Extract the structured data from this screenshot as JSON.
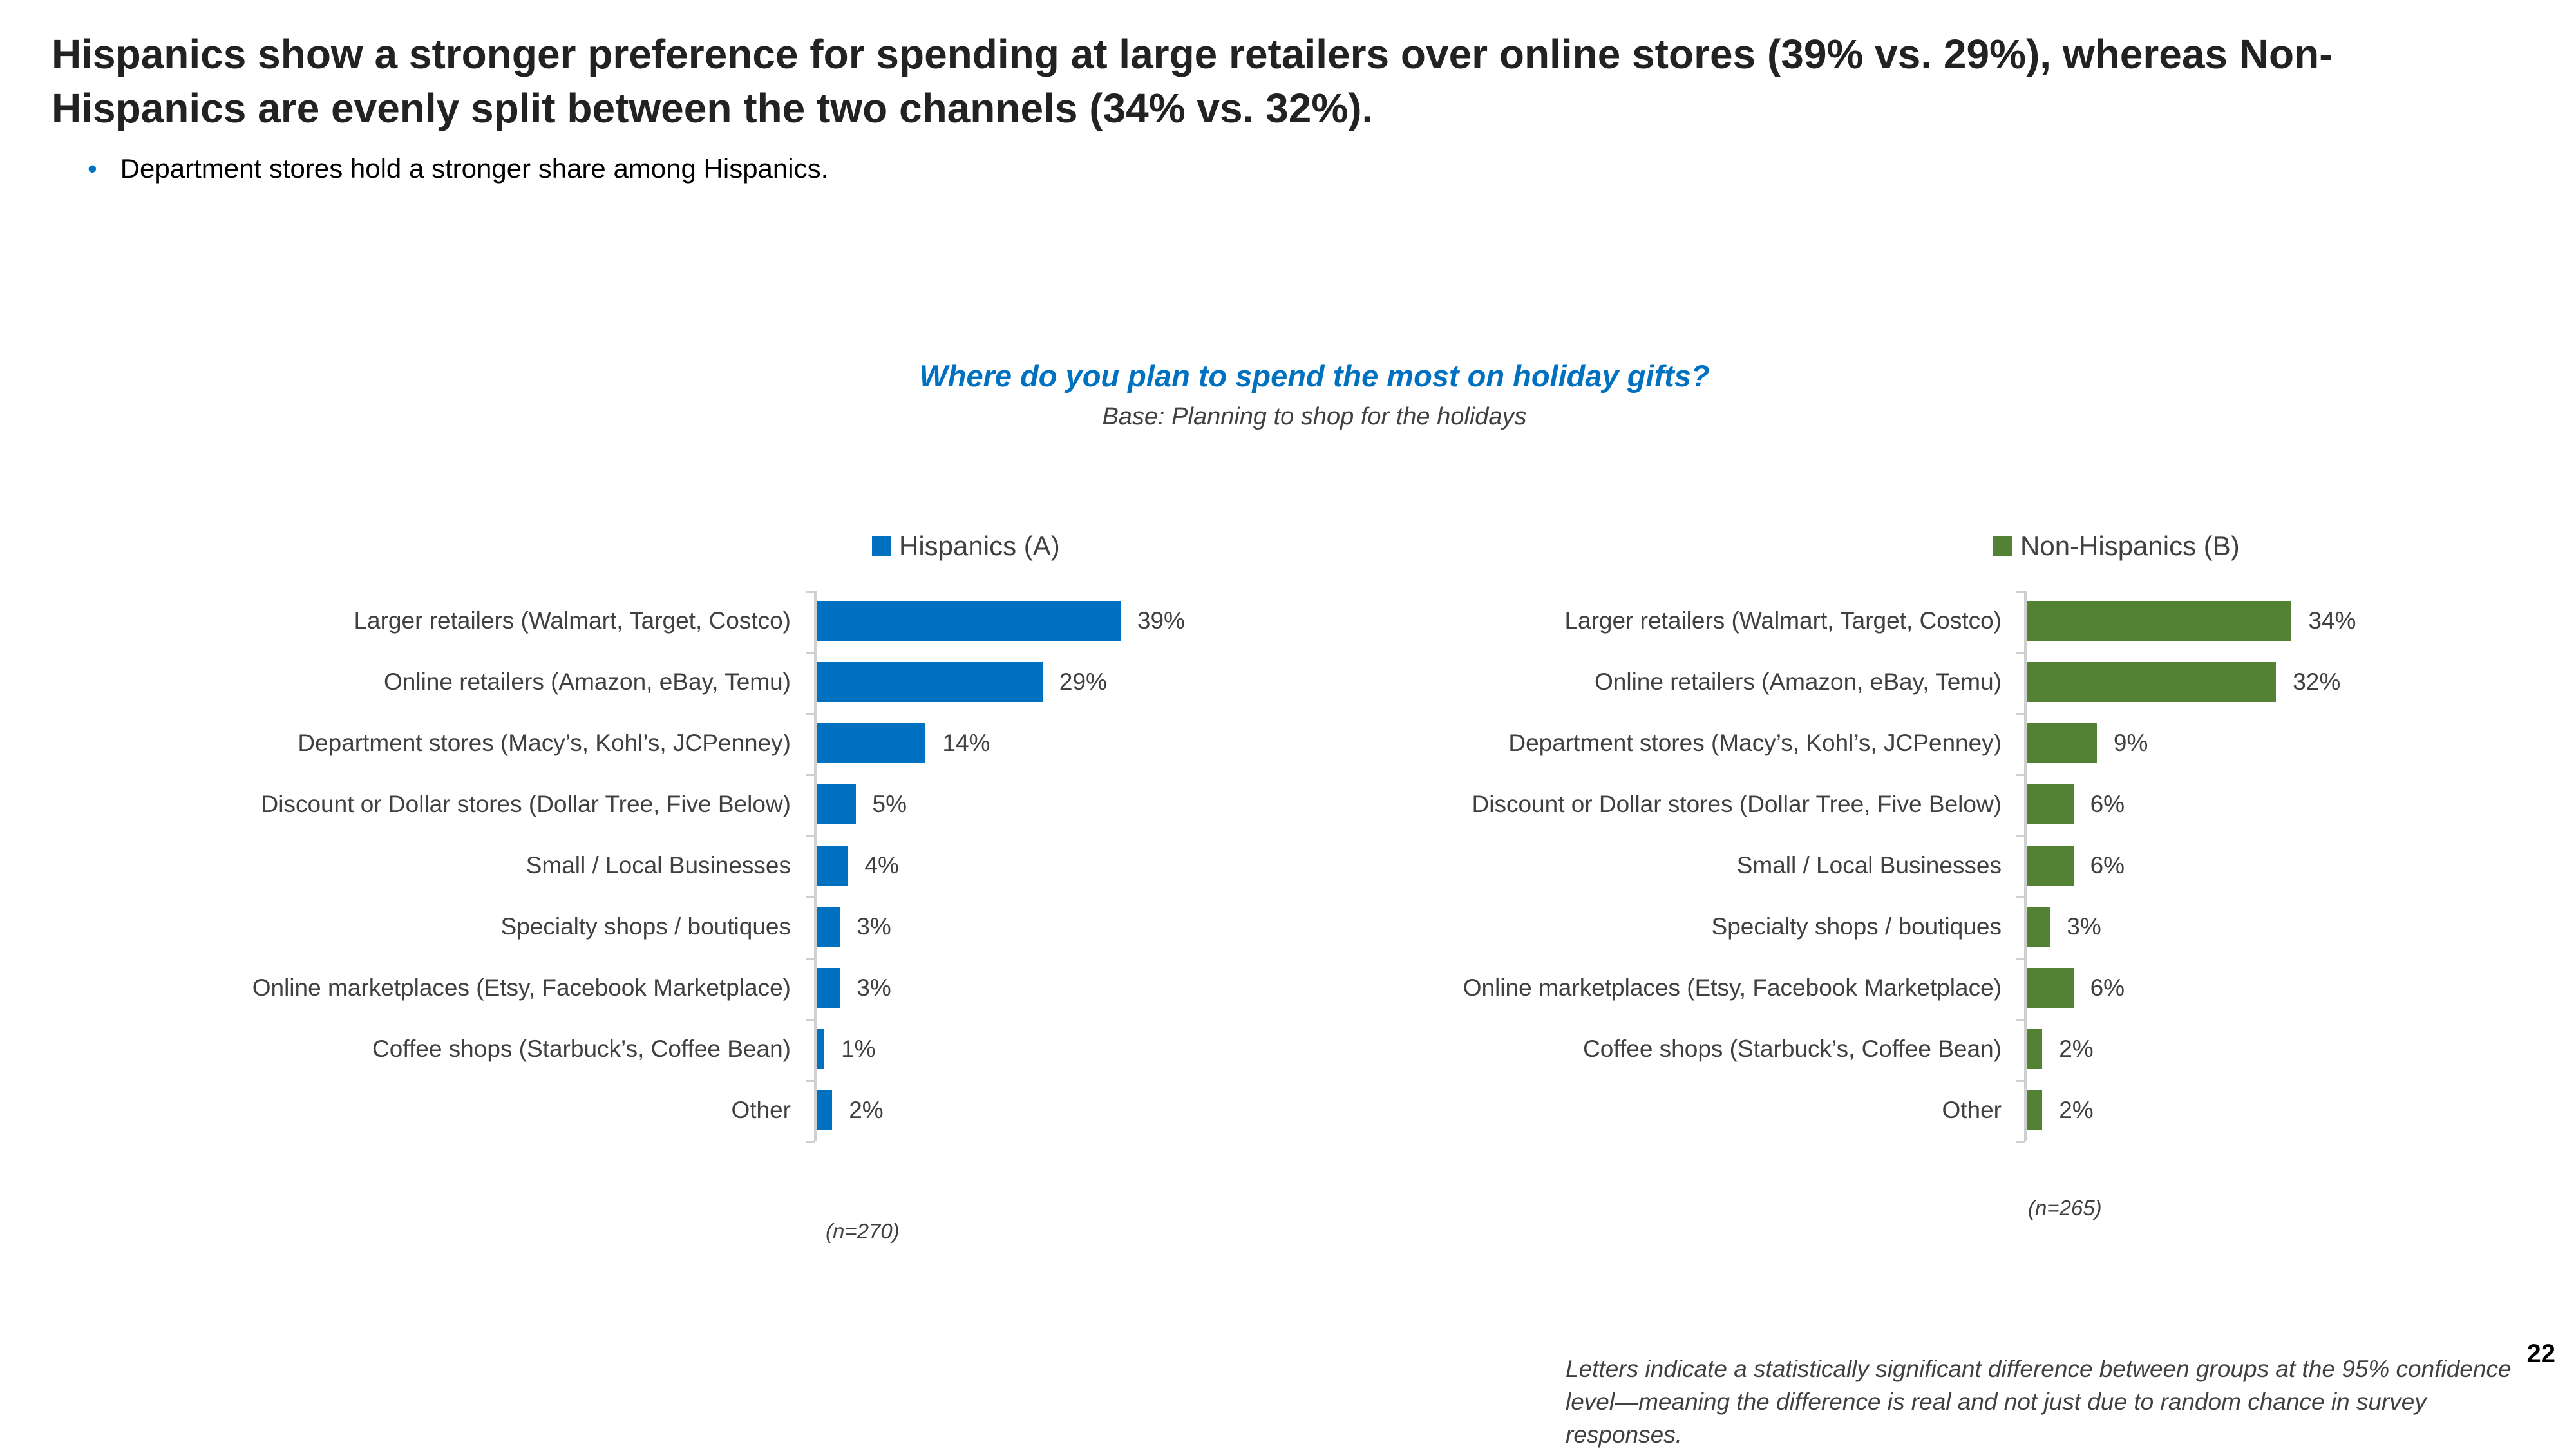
{
  "header": {
    "title": "Hispanics show a stronger preference for spending at large retailers over online stores (39% vs. 29%), whereas Non-Hispanics are evenly split between the two channels (34% vs. 32%).",
    "bullet": "Department stores hold a stronger share among Hispanics."
  },
  "footer": {
    "note": "Letters indicate a statistically significant difference between groups at the 95% confidence level—meaning the difference is real and not just due to random chance in survey responses.",
    "page_number": "22"
  },
  "chart_data": [
    {
      "type": "bar",
      "orientation": "horizontal",
      "title": "Where do you plan to spend the most on holiday gifts?",
      "subtitle": "Base: Planning to shop for the holidays",
      "legend": "Hispanics (A)",
      "legend_placement": "top",
      "color": "#0070C0",
      "sample": "(n=270)",
      "categories": [
        "Larger retailers (Walmart, Target, Costco)",
        "Online retailers (Amazon, eBay, Temu)",
        "Department stores (Macy’s, Kohl’s, JCPenney)",
        "Discount or Dollar stores (Dollar Tree, Five Below)",
        "Small / Local Businesses",
        "Specialty shops / boutiques",
        "Online marketplaces (Etsy, Facebook Marketplace)",
        "Coffee shops (Starbuck’s, Coffee Bean)",
        "Other"
      ],
      "values": [
        39,
        29,
        14,
        5,
        4,
        3,
        3,
        1,
        2
      ],
      "labels": [
        "39%",
        "29%",
        "14%",
        "5%",
        "4%",
        "3%",
        "3%",
        "1%",
        "2%"
      ],
      "unit": "%",
      "grid": false
    },
    {
      "type": "bar",
      "orientation": "horizontal",
      "legend": "Non-Hispanics (B)",
      "legend_placement": "top",
      "color": "#548235",
      "sample": "(n=265)",
      "categories": [
        "Larger retailers (Walmart, Target, Costco)",
        "Online retailers (Amazon, eBay, Temu)",
        "Department stores (Macy’s, Kohl’s, JCPenney)",
        "Discount or Dollar stores (Dollar Tree, Five Below)",
        "Small / Local Businesses",
        "Specialty shops / boutiques",
        "Online marketplaces (Etsy, Facebook Marketplace)",
        "Coffee shops (Starbuck’s, Coffee Bean)",
        "Other"
      ],
      "values": [
        34,
        32,
        9,
        6,
        6,
        3,
        6,
        2,
        2
      ],
      "labels": [
        "34%",
        "32%",
        "9%",
        "6%",
        "6%",
        "3%",
        "6%",
        "2%",
        "2%"
      ],
      "unit": "%",
      "grid": false
    }
  ]
}
